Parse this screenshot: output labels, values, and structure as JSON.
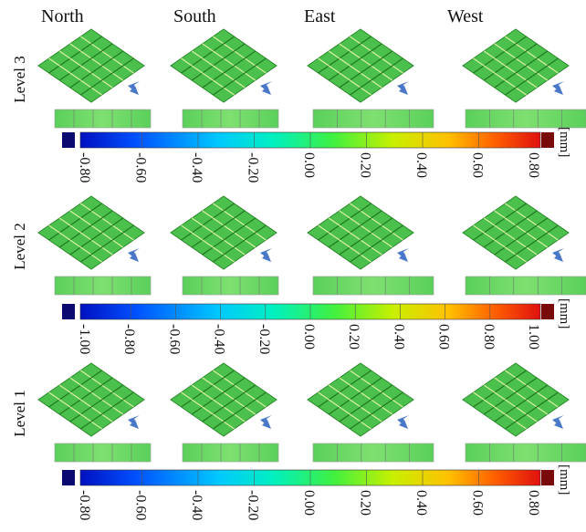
{
  "column_headers": [
    "North",
    "South",
    "East",
    "West"
  ],
  "rows": [
    {
      "label": "Level 3",
      "colorbar": {
        "tick_labels": [
          "-0.80",
          "-0.60",
          "-0.40",
          "-0.20",
          "0.00",
          "0.20",
          "0.40",
          "0.60",
          "0.80"
        ],
        "unit": "[mm]"
      }
    },
    {
      "label": "Level 2",
      "colorbar": {
        "tick_labels": [
          "-1.00",
          "-0.80",
          "-0.60",
          "-0.40",
          "-0.20",
          "0.00",
          "0.20",
          "0.40",
          "0.60",
          "0.80",
          "1.00"
        ],
        "unit": "[mm]"
      }
    },
    {
      "label": "Level 1",
      "colorbar": {
        "tick_labels": [
          "-0.80",
          "-0.60",
          "-0.40",
          "-0.20",
          "0.00",
          "0.20",
          "0.40",
          "0.60",
          "0.80"
        ],
        "unit": "[mm]"
      }
    }
  ]
}
